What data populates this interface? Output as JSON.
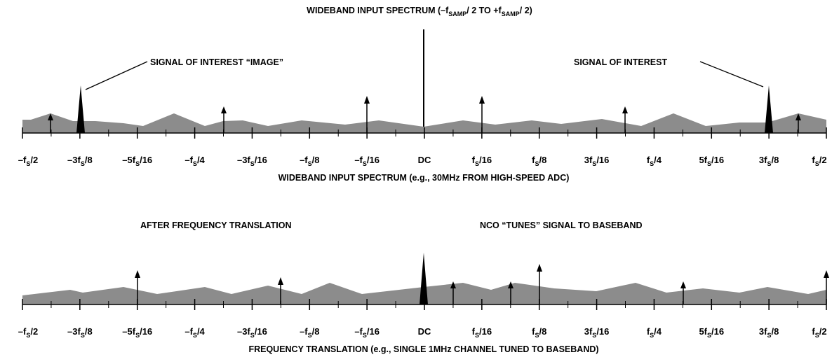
{
  "top": {
    "title": "WIDEBAND INPUT SPECTRUM (–f",
    "title_sub_1": "SAMP",
    "title_mid": "/ 2 TO +f",
    "title_sub_2": "SAMP",
    "title_end": "/ 2)",
    "annotation_image": "SIGNAL OF INTEREST “IMAGE”",
    "annotation_signal": "SIGNAL OF INTEREST",
    "caption": "WIDEBAND INPUT SPECTRUM (e.g., 30MHz FROM HIGH-SPEED ADC)"
  },
  "bottom": {
    "label_left": "AFTER FREQUENCY TRANSLATION",
    "label_right": "NCO “TUNES” SIGNAL TO BASEBAND",
    "caption": "FREQUENCY TRANSLATION (e.g., SINGLE 1MHz CHANNEL TUNED TO BASEBAND)"
  },
  "axis_ticks": [
    {
      "pre": "–f",
      "sub": "S",
      "post": "/2"
    },
    {
      "pre": "–3f",
      "sub": "S",
      "post": "/8"
    },
    {
      "pre": "–5f",
      "sub": "S",
      "post": "/16"
    },
    {
      "pre": "–f",
      "sub": "S",
      "post": "/4"
    },
    {
      "pre": "–3f",
      "sub": "S",
      "post": "/16"
    },
    {
      "pre": "–f",
      "sub": "S",
      "post": "/8"
    },
    {
      "pre": "–f",
      "sub": "S",
      "post": "/16"
    },
    {
      "pre": "DC",
      "sub": "",
      "post": ""
    },
    {
      "pre": "f",
      "sub": "S",
      "post": "/16"
    },
    {
      "pre": "f",
      "sub": "S",
      "post": "/8"
    },
    {
      "pre": "3f",
      "sub": "S",
      "post": "/16"
    },
    {
      "pre": "f",
      "sub": "S",
      "post": "/4"
    },
    {
      "pre": "5f",
      "sub": "S",
      "post": "/16"
    },
    {
      "pre": "3f",
      "sub": "S",
      "post": "/8"
    },
    {
      "pre": "f",
      "sub": "S",
      "post": "/2"
    }
  ],
  "colors": {
    "noise": "#8c8c8c",
    "line": "#000000"
  }
}
